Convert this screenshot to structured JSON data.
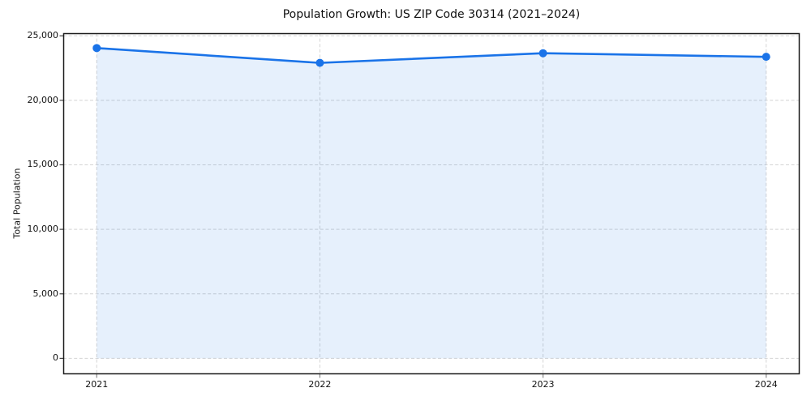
{
  "chart_data": {
    "type": "line",
    "title": "Population Growth: US ZIP Code 30314 (2021–2024)",
    "xlabel": "",
    "ylabel": "Total Population",
    "x": [
      2021,
      2022,
      2023,
      2024
    ],
    "xticklabels": [
      "2021",
      "2022",
      "2023",
      "2024"
    ],
    "values": [
      24050,
      22900,
      23650,
      23370
    ],
    "series": [
      {
        "name": "Total Population",
        "values": [
          24050,
          22900,
          23650,
          23370
        ]
      }
    ],
    "area_fill": true,
    "area_baseline": 0,
    "xlim": [
      2020.85,
      2024.15
    ],
    "ylim": [
      -1230,
      25200
    ],
    "yticks": [
      {
        "value": 0,
        "label": "0"
      },
      {
        "value": 5000,
        "label": "5,000"
      },
      {
        "value": 10000,
        "label": "10,000"
      },
      {
        "value": 15000,
        "label": "15,000"
      },
      {
        "value": 20000,
        "label": "20,000"
      },
      {
        "value": 25000,
        "label": "25,000"
      }
    ],
    "grid": true,
    "legend": "none",
    "colors": {
      "line": "#1a73e8",
      "fill": "#1a73e8",
      "fill_opacity": 0.11,
      "grid": "#d4d4d4",
      "spine": "#1a1a1a",
      "ytick_mark": "#444444",
      "xtick_mark": "#888888",
      "text": "#111111",
      "background": "#ffffff"
    }
  }
}
